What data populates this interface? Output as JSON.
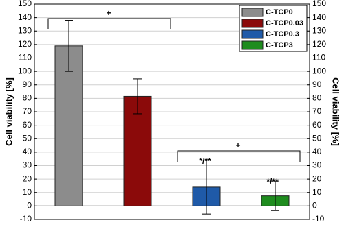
{
  "chart_data": {
    "type": "bar",
    "ylabel": "Cell viability [%]",
    "y2label": "Cell viability [%]",
    "series": [
      {
        "name": "C-TCP0",
        "color": "#8c8c8c",
        "values": [
          119
        ],
        "errors": [
          19
        ]
      },
      {
        "name": "C-TCP0.03",
        "color": "#8b0a0a",
        "values": [
          81.5
        ],
        "errors": [
          13
        ]
      },
      {
        "name": "C-TCP0.3",
        "color": "#1f5aa8",
        "values": [
          14
        ],
        "errors": [
          20
        ]
      },
      {
        "name": "C-TCP3",
        "color": "#1e8c1e",
        "values": [
          7.5
        ],
        "errors": [
          11
        ]
      }
    ],
    "ylim": [
      -10,
      150
    ],
    "yticks": [
      -10,
      0,
      10,
      20,
      30,
      40,
      50,
      60,
      70,
      80,
      90,
      100,
      110,
      120,
      130,
      140,
      150
    ],
    "y2lim": [
      -10,
      150
    ],
    "y2ticks": [
      -10,
      0,
      10,
      20,
      30,
      40,
      50,
      60,
      70,
      80,
      90,
      100,
      110,
      120,
      130,
      140,
      150
    ],
    "grid": true,
    "legend": "upper right",
    "annotations": [
      "+",
      "+",
      "*/**",
      "*/**"
    ]
  }
}
